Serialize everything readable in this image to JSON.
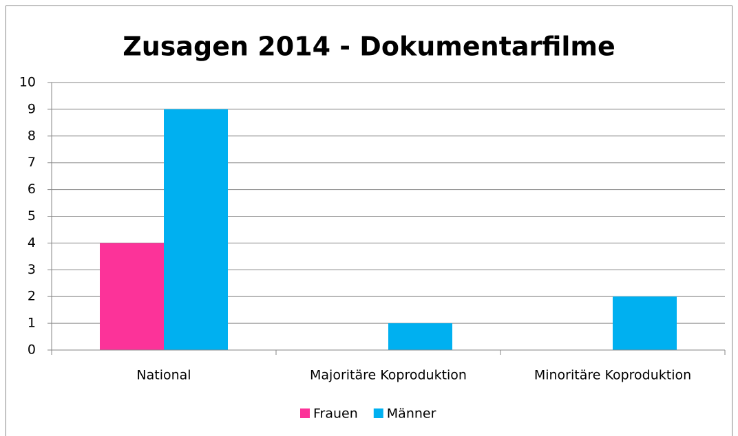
{
  "chart_data": {
    "type": "bar",
    "title": "Zusagen 2014 - Dokumentarfilme",
    "categories": [
      "National",
      "Majoritäre Koproduktion",
      "Minoritäre Koproduktion"
    ],
    "series": [
      {
        "name": "Frauen",
        "color": "#fc3399",
        "values": [
          4,
          0,
          0
        ]
      },
      {
        "name": "Männer",
        "color": "#00b0f0",
        "values": [
          9,
          1,
          2
        ]
      }
    ],
    "ylim": [
      0,
      10
    ],
    "yticks": [
      0,
      1,
      2,
      3,
      4,
      5,
      6,
      7,
      8,
      9,
      10
    ],
    "grid": true,
    "legend": "bottom"
  }
}
